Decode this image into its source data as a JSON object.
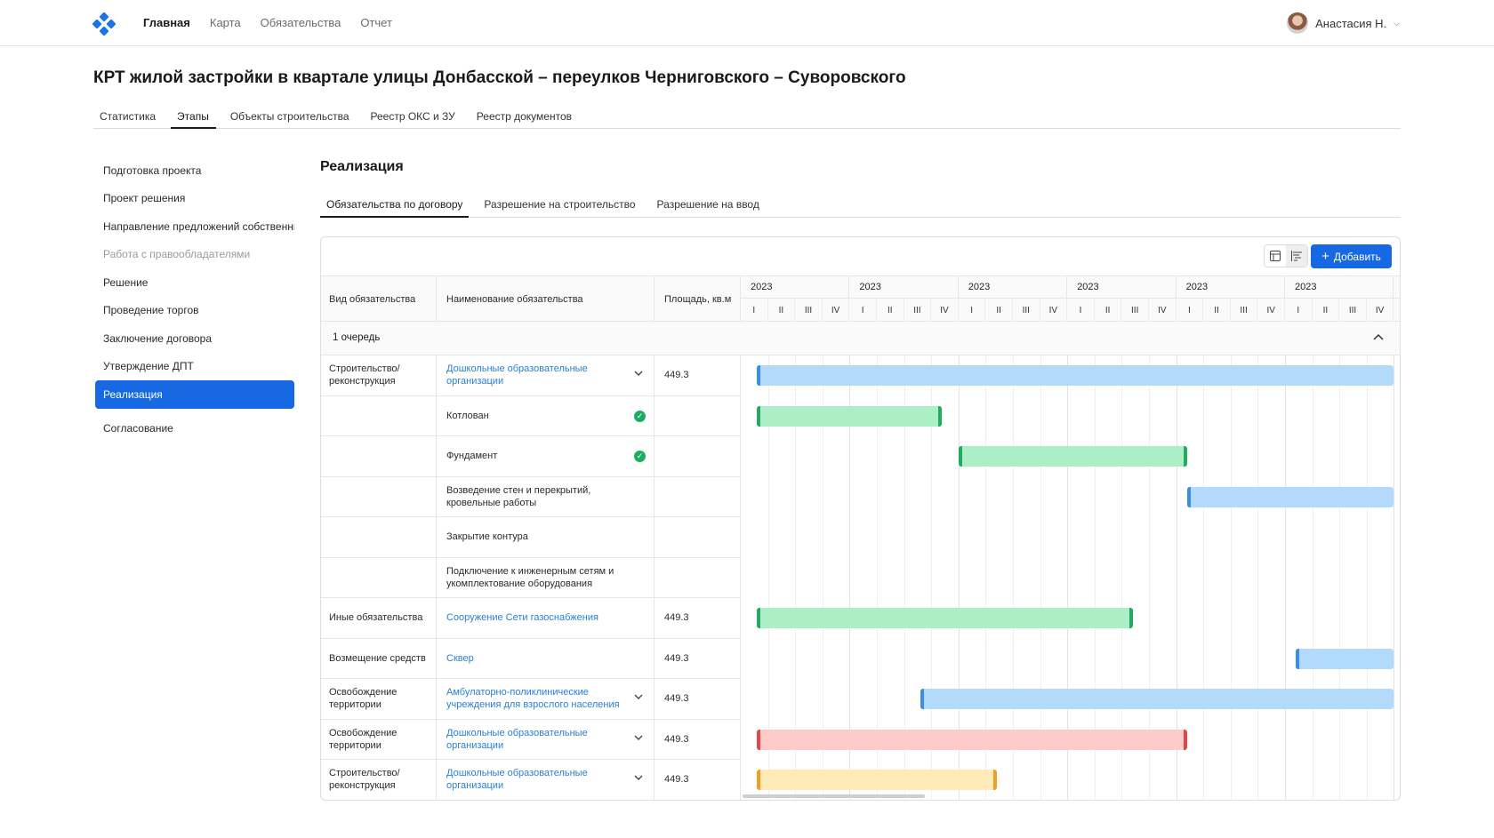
{
  "nav": {
    "items": [
      {
        "label": "Главная",
        "active": true
      },
      {
        "label": "Карта",
        "active": false
      },
      {
        "label": "Обязательства",
        "active": false
      },
      {
        "label": "Отчет",
        "active": false
      }
    ],
    "user_name": "Анастасия Н."
  },
  "page_title": "КРТ жилой застройки в квартале улицы Донбасской – переулков Черниговского – Суворовского",
  "main_tabs": [
    {
      "label": "Статистика",
      "active": false
    },
    {
      "label": "Этапы",
      "active": true
    },
    {
      "label": "Объекты строительства",
      "active": false
    },
    {
      "label": "Реестр ОКС и ЗУ",
      "active": false
    },
    {
      "label": "Реестр документов",
      "active": false
    }
  ],
  "sidebar": {
    "items": [
      {
        "label": "Подготовка проекта",
        "state": "normal"
      },
      {
        "label": "Проект решения",
        "state": "normal"
      },
      {
        "label": "Направление предложений собственникам",
        "state": "normal"
      },
      {
        "label": "Работа с правообладателями",
        "state": "muted"
      },
      {
        "label": "Решение",
        "state": "normal"
      },
      {
        "label": "Проведение торгов",
        "state": "normal"
      },
      {
        "label": "Заключение договора",
        "state": "normal"
      },
      {
        "label": "Утверждение ДПТ",
        "state": "normal"
      },
      {
        "label": "Реализация",
        "state": "active"
      },
      {
        "label": "Согласование",
        "state": "normal"
      }
    ]
  },
  "section": {
    "title": "Реализация",
    "tabs": [
      {
        "label": "Обязательства по договору",
        "active": true
      },
      {
        "label": "Разрешение на строительство",
        "active": false
      },
      {
        "label": "Разрешение на ввод",
        "active": false
      }
    ]
  },
  "toolbar": {
    "add_label": "Добавить",
    "view_icons": [
      "table-view-icon",
      "gantt-view-icon"
    ],
    "active_view": "gantt"
  },
  "table": {
    "headers": {
      "type": "Вид обязательства",
      "name": "Наименование обязательства",
      "area": "Площадь, кв.м"
    },
    "years": [
      "2023",
      "2023",
      "2023",
      "2023",
      "2023",
      "2023"
    ],
    "quarters": [
      "I",
      "II",
      "III",
      "IV"
    ],
    "group": {
      "label": "1 очередь",
      "expanded": true
    },
    "rows": [
      {
        "type": "Строительство/ реконструкция",
        "name": "Дошкольные образовательные организации",
        "link": true,
        "area": "449.3",
        "marker": "chevron",
        "bar": {
          "start_q": 0.6,
          "end_q": 24,
          "color": "#b3dafb",
          "edge": "#3a8ee6",
          "closed": false
        }
      },
      {
        "type": "",
        "name": "Котлован",
        "link": false,
        "area": "",
        "marker": "check",
        "bar": {
          "start_q": 0.6,
          "end_q": 7.4,
          "color": "#aceec6",
          "edge": "#24a95f",
          "closed": true
        }
      },
      {
        "type": "",
        "name": "Фундамент",
        "link": false,
        "area": "",
        "marker": "check",
        "bar": {
          "start_q": 8.0,
          "end_q": 16.4,
          "color": "#aceec6",
          "edge": "#24a95f",
          "closed": true
        }
      },
      {
        "type": "",
        "name": "Возведение стен и перекрытий, кровельные работы",
        "link": false,
        "area": "",
        "marker": "none",
        "bar": {
          "start_q": 16.4,
          "end_q": 24,
          "color": "#b3dafb",
          "edge": "#3a8ee6",
          "closed": false
        }
      },
      {
        "type": "",
        "name": "Закрытие контура",
        "link": false,
        "area": "",
        "marker": "none",
        "bar": null
      },
      {
        "type": "",
        "name": "Подключение к инженерным сетям и укомплектование оборудования",
        "link": false,
        "area": "",
        "marker": "none",
        "bar": null
      },
      {
        "type": "Иные обязательства",
        "name": "Сооружение Сети газоснабжения",
        "link": true,
        "area": "449.3",
        "marker": "none",
        "bar": {
          "start_q": 0.6,
          "end_q": 14.4,
          "color": "#aceec6",
          "edge": "#24a95f",
          "closed": true
        }
      },
      {
        "type": "Возмещение средств",
        "name": "Сквер",
        "link": true,
        "area": "449.3",
        "marker": "none",
        "bar": {
          "start_q": 20.4,
          "end_q": 24,
          "color": "#b3dafb",
          "edge": "#3a8ee6",
          "closed": false
        }
      },
      {
        "type": "Освобождение территории",
        "name": "Амбулаторно-поликлинические учреждения для взрослого населения",
        "link": true,
        "area": "449.3",
        "marker": "chevron",
        "bar": {
          "start_q": 6.6,
          "end_q": 24,
          "color": "#b3dafb",
          "edge": "#3a8ee6",
          "closed": false
        }
      },
      {
        "type": "Освобождение территории",
        "name": "Дошкольные образовательные организации",
        "link": true,
        "area": "449.3",
        "marker": "chevron",
        "bar": {
          "start_q": 0.6,
          "end_q": 16.4,
          "color": "#fecaca",
          "edge": "#e04848",
          "closed": true
        }
      },
      {
        "type": "Строительство/ реконструкция",
        "name": "Дошкольные образовательные организации",
        "link": true,
        "area": "449.3",
        "marker": "chevron",
        "bar": {
          "start_q": 0.6,
          "end_q": 9.4,
          "color": "#feebb8",
          "edge": "#f0a020",
          "closed": true
        }
      }
    ]
  }
}
